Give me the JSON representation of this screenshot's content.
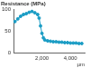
{
  "chart_data": {
    "type": "line",
    "title": "Resistance (MPa)",
    "x_label": "µm",
    "x": [
      100,
      300,
      500,
      700,
      900,
      1100,
      1300,
      1500,
      1700,
      1800,
      1900,
      2000,
      2100,
      2200,
      2400,
      2600,
      2800,
      3000,
      3200,
      3400,
      3600,
      3800,
      4000,
      4200,
      4400,
      4600,
      4800
    ],
    "values": [
      72,
      78,
      84,
      88,
      90,
      93,
      95,
      92,
      88,
      80,
      62,
      45,
      35,
      30,
      28,
      27,
      26,
      26,
      25,
      25,
      24,
      24,
      23,
      23,
      23,
      22,
      22
    ],
    "color": "#1a9cc4",
    "marker": "circle",
    "xlim": [
      0,
      5000
    ],
    "xticks": [
      {
        "value": 2000,
        "label": "2,000"
      },
      {
        "value": 4000,
        "label": "4,000"
      }
    ],
    "ylim": [
      0,
      100
    ],
    "yticks": [
      0,
      50,
      100
    ],
    "grid": false
  }
}
